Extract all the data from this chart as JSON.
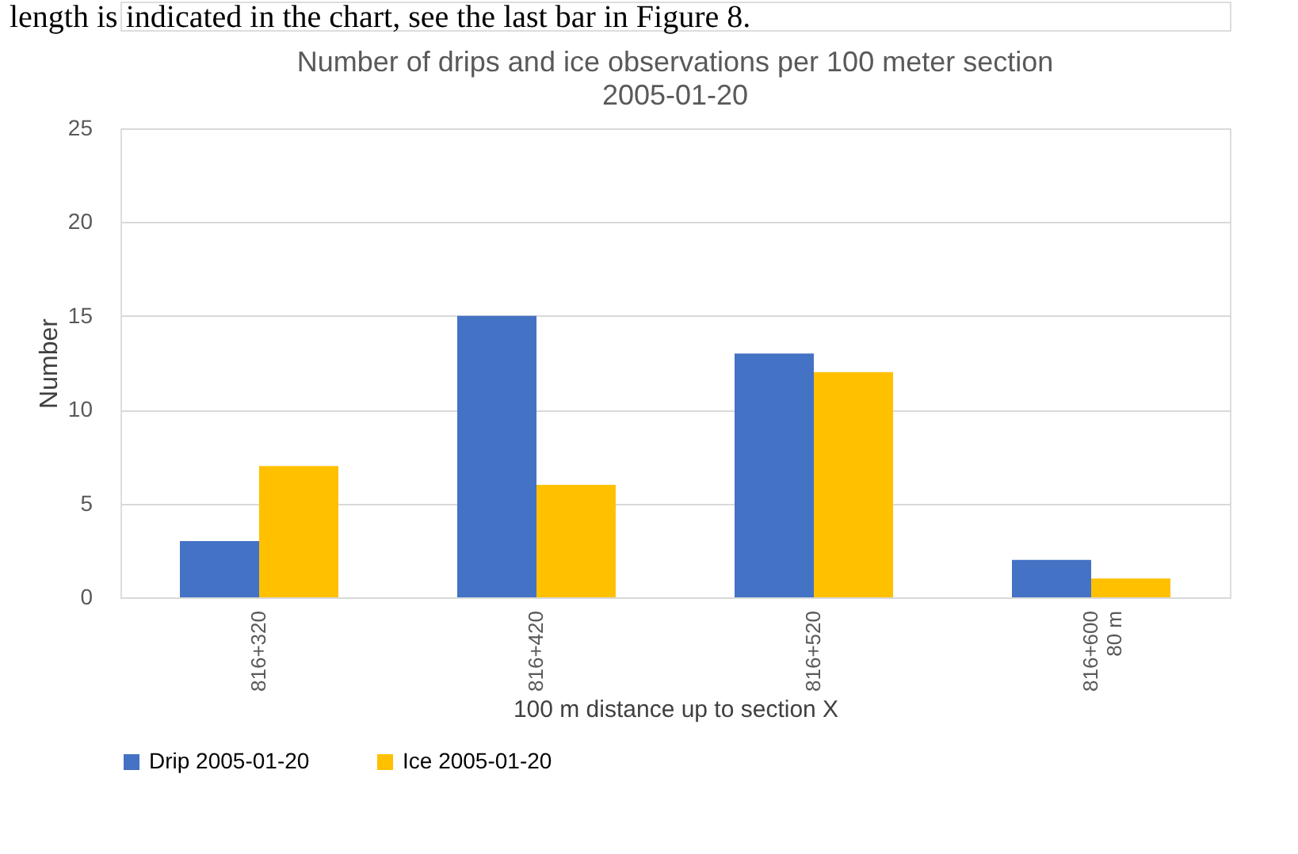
{
  "chart_data": {
    "type": "bar",
    "title": "Number of drips and ice observations per 100 meter section",
    "subtitle": "2005-01-20",
    "xlabel": "100 m distance up to section X",
    "ylabel": "Number",
    "categories": [
      "816+320",
      "816+420",
      "816+520",
      "816+600\n80 m"
    ],
    "series": [
      {
        "name": "Drip 2005-01-20",
        "color": "#4472c4",
        "values": [
          3,
          15,
          13,
          2
        ]
      },
      {
        "name": "Ice 2005-01-20",
        "color": "#ffc000",
        "values": [
          7,
          6,
          12,
          1
        ]
      }
    ],
    "ylim": [
      0,
      25
    ],
    "yticks": [
      0,
      5,
      10,
      15,
      20,
      25
    ],
    "grid": "y",
    "legend": "bottom",
    "annotations": [
      "length is indicated in the chart, see the last bar in Figure 8."
    ]
  }
}
